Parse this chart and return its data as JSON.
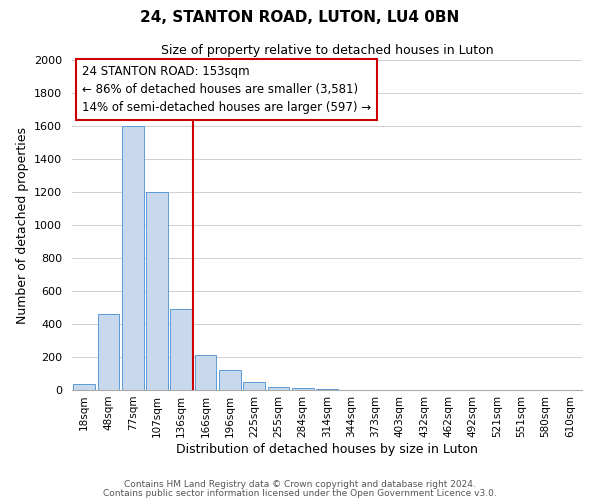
{
  "title": "24, STANTON ROAD, LUTON, LU4 0BN",
  "subtitle": "Size of property relative to detached houses in Luton",
  "xlabel": "Distribution of detached houses by size in Luton",
  "ylabel": "Number of detached properties",
  "bar_labels": [
    "18sqm",
    "48sqm",
    "77sqm",
    "107sqm",
    "136sqm",
    "166sqm",
    "196sqm",
    "225sqm",
    "255sqm",
    "284sqm",
    "314sqm",
    "344sqm",
    "373sqm",
    "403sqm",
    "432sqm",
    "462sqm",
    "492sqm",
    "521sqm",
    "551sqm",
    "580sqm",
    "610sqm"
  ],
  "bar_heights": [
    35,
    460,
    1600,
    1200,
    490,
    210,
    120,
    50,
    20,
    10,
    5,
    0,
    0,
    0,
    0,
    0,
    0,
    0,
    0,
    0,
    0
  ],
  "bar_color": "#c8d9ee",
  "bar_edge_color": "#5b9bd5",
  "ylim": [
    0,
    2000
  ],
  "yticks": [
    0,
    200,
    400,
    600,
    800,
    1000,
    1200,
    1400,
    1600,
    1800,
    2000
  ],
  "property_line_color": "#cc0000",
  "annotation_title": "24 STANTON ROAD: 153sqm",
  "annotation_line1": "← 86% of detached houses are smaller (3,581)",
  "annotation_line2": "14% of semi-detached houses are larger (597) →",
  "annotation_box_color": "#ffffff",
  "annotation_box_edge": "#cc0000",
  "footer1": "Contains HM Land Registry data © Crown copyright and database right 2024.",
  "footer2": "Contains public sector information licensed under the Open Government Licence v3.0.",
  "background_color": "#ffffff",
  "grid_color": "#d0d0d0"
}
